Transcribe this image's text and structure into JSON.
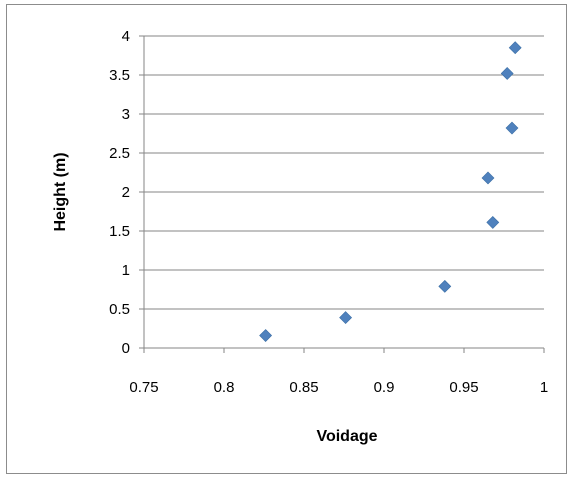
{
  "chart_data": {
    "type": "scatter",
    "title": "",
    "xlabel": "Voidage",
    "ylabel": "Height (m)",
    "xlim": [
      0.75,
      1
    ],
    "ylim": [
      0,
      4
    ],
    "x_ticks": [
      0.75,
      0.8,
      0.85,
      0.9,
      0.95,
      1
    ],
    "x_tick_labels": [
      "0.75",
      "0.8",
      "0.85",
      "0.9",
      "0.95",
      "1"
    ],
    "y_ticks": [
      0,
      0.5,
      1,
      1.5,
      2,
      2.5,
      3,
      3.5,
      4
    ],
    "y_tick_labels": [
      "0",
      "0.5",
      "1",
      "1.5",
      "2",
      "2.5",
      "3",
      "3.5",
      "4"
    ],
    "grid": "horizontal",
    "legend": "none",
    "marker": "diamond",
    "marker_color": "#4f81bd",
    "series": [
      {
        "points": [
          {
            "x": 0.826,
            "y": 0.16
          },
          {
            "x": 0.876,
            "y": 0.39
          },
          {
            "x": 0.938,
            "y": 0.79
          },
          {
            "x": 0.965,
            "y": 2.18
          },
          {
            "x": 0.968,
            "y": 1.61
          },
          {
            "x": 0.977,
            "y": 3.52
          },
          {
            "x": 0.98,
            "y": 2.82
          },
          {
            "x": 0.982,
            "y": 3.85
          }
        ]
      }
    ]
  }
}
